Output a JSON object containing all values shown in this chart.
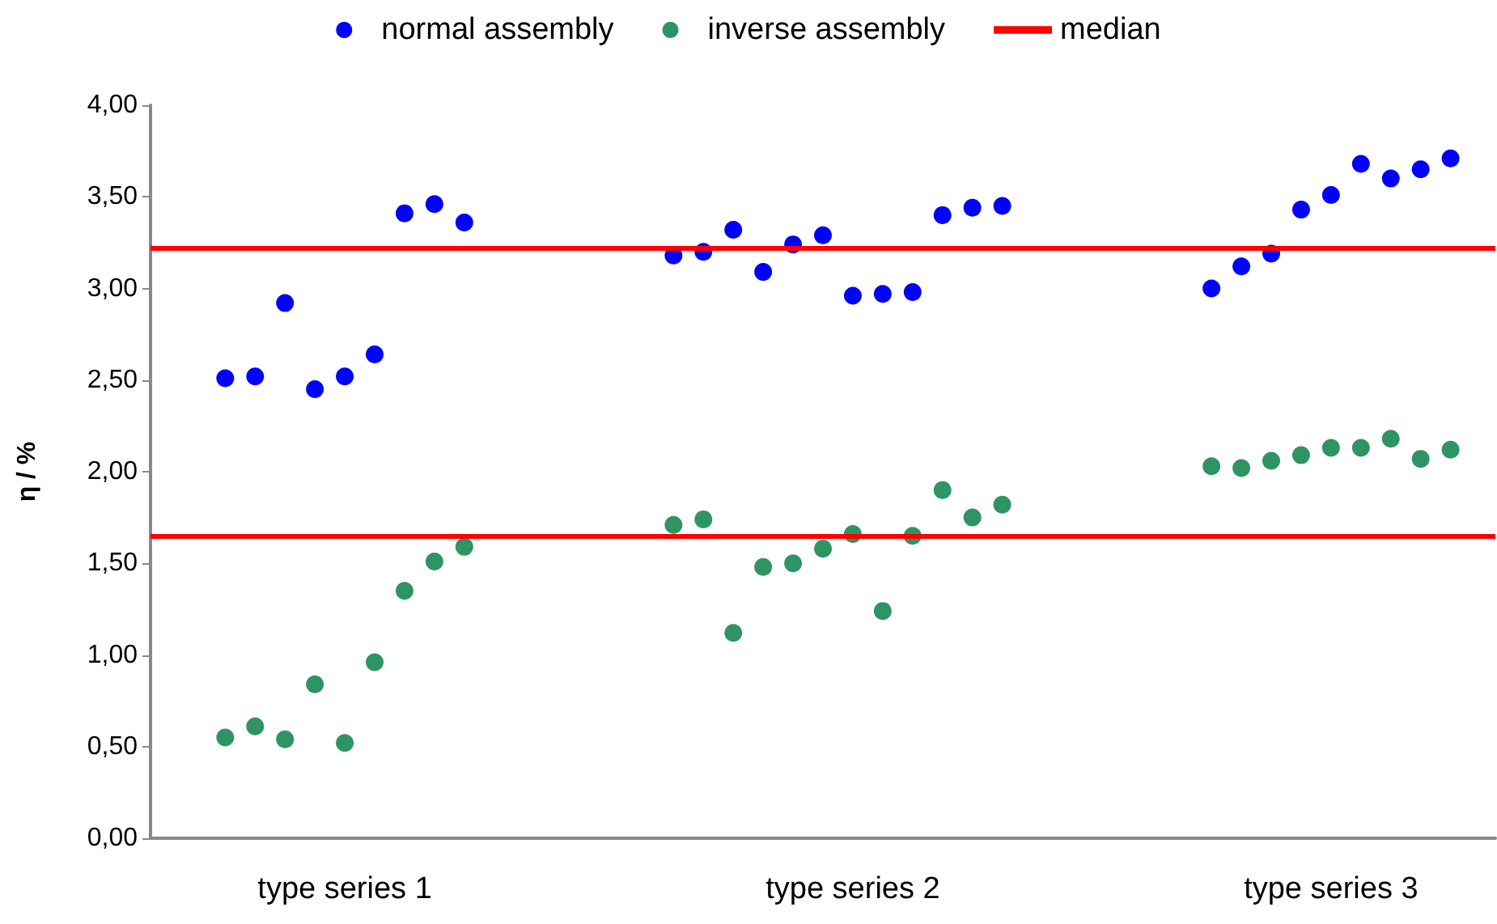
{
  "chart_data": {
    "type": "scatter",
    "ylabel": "η / %",
    "marker": "circle",
    "grid": false,
    "legend": "top",
    "categories": [
      null,
      null,
      null,
      null,
      null,
      null,
      "type series 1",
      null,
      null,
      null,
      null,
      null,
      null,
      null,
      null,
      null,
      null,
      null,
      null,
      null,
      null,
      null,
      null,
      "type series 2",
      null,
      null,
      null,
      null,
      null,
      null,
      null,
      null,
      null,
      null,
      null,
      null,
      null,
      null,
      null,
      "type series 3",
      null,
      null,
      null,
      null,
      null
    ],
    "ylim": [
      0,
      4
    ],
    "yticks": [
      {
        "value": 0,
        "label": "0,00"
      },
      {
        "value": 0.5,
        "label": "0,50"
      },
      {
        "value": 1,
        "label": "1,00"
      },
      {
        "value": 1.5,
        "label": "1,50"
      },
      {
        "value": 2,
        "label": "2,00"
      },
      {
        "value": 2.5,
        "label": "2,50"
      },
      {
        "value": 3,
        "label": "3,00"
      },
      {
        "value": 3.5,
        "label": "3,50"
      },
      {
        "value": 4,
        "label": "4,00"
      }
    ],
    "series": [
      {
        "name": "normal assembly",
        "color": "#0000ff",
        "values": [
          null,
          null,
          2.51,
          2.52,
          2.92,
          2.45,
          2.52,
          2.64,
          3.41,
          3.46,
          3.36,
          null,
          null,
          null,
          null,
          null,
          null,
          3.18,
          3.2,
          3.32,
          3.09,
          3.24,
          3.29,
          2.96,
          2.97,
          2.98,
          3.4,
          3.44,
          3.45,
          null,
          null,
          null,
          null,
          null,
          null,
          3.0,
          3.12,
          3.19,
          3.43,
          3.51,
          3.68,
          3.6,
          3.65,
          3.71,
          null
        ]
      },
      {
        "name": "inverse assembly",
        "color": "#2e9464",
        "values": [
          null,
          null,
          0.55,
          0.61,
          0.54,
          0.84,
          0.52,
          0.96,
          1.35,
          1.51,
          1.59,
          null,
          null,
          null,
          null,
          null,
          null,
          1.71,
          1.74,
          1.12,
          1.48,
          1.5,
          1.58,
          1.66,
          1.24,
          1.65,
          1.9,
          1.75,
          1.82,
          null,
          null,
          null,
          null,
          null,
          null,
          2.03,
          2.02,
          2.06,
          2.09,
          2.13,
          2.13,
          2.18,
          2.07,
          2.12,
          null
        ]
      }
    ],
    "ref_lines": [
      {
        "axis": "y",
        "value": 3.22,
        "label": "median",
        "color": "#ff0000"
      },
      {
        "axis": "y",
        "value": 1.65,
        "color": "#ff0000"
      }
    ]
  }
}
